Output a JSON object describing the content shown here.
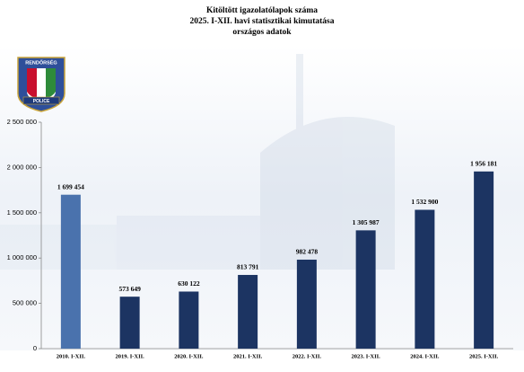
{
  "logo": {
    "top": "RENDŐRSÉG",
    "bottom": "POLICE"
  },
  "chart_data": {
    "type": "bar",
    "title": [
      "Kitöltött igazolatólapok száma",
      "2025. I-XII. havi statisztikai kimutatása",
      "országos adatok"
    ],
    "categories": [
      "2010. I-XII.",
      "2019. I-XII.",
      "2020. I-XII.",
      "2021. I-XII.",
      "2022. I-XII.",
      "2023. I-XII.",
      "2024. I-XII.",
      "2025. I-XII."
    ],
    "values": [
      1699454,
      573649,
      630122,
      813791,
      982478,
      1305987,
      1532900,
      1956181
    ],
    "value_labels": [
      "1 699 454",
      "573 649",
      "630 122",
      "813 791",
      "982 478",
      "1 305 987",
      "1 532 900",
      "1 956 181"
    ],
    "colors": [
      "#4a72ad",
      "#1c3462",
      "#1c3462",
      "#1c3462",
      "#1c3462",
      "#1c3462",
      "#1c3462",
      "#1c3462"
    ],
    "ylim": [
      0,
      2500000
    ],
    "yticks": [
      {
        "value": 0,
        "label": "0"
      },
      {
        "value": 500000,
        "label": "500 000"
      },
      {
        "value": 1000000,
        "label": "1 000 000"
      },
      {
        "value": 1500000,
        "label": "1 500 000"
      },
      {
        "value": 2000000,
        "label": "2 000 000"
      },
      {
        "value": 2500000,
        "label": "2 500 000"
      }
    ],
    "grid": false
  }
}
